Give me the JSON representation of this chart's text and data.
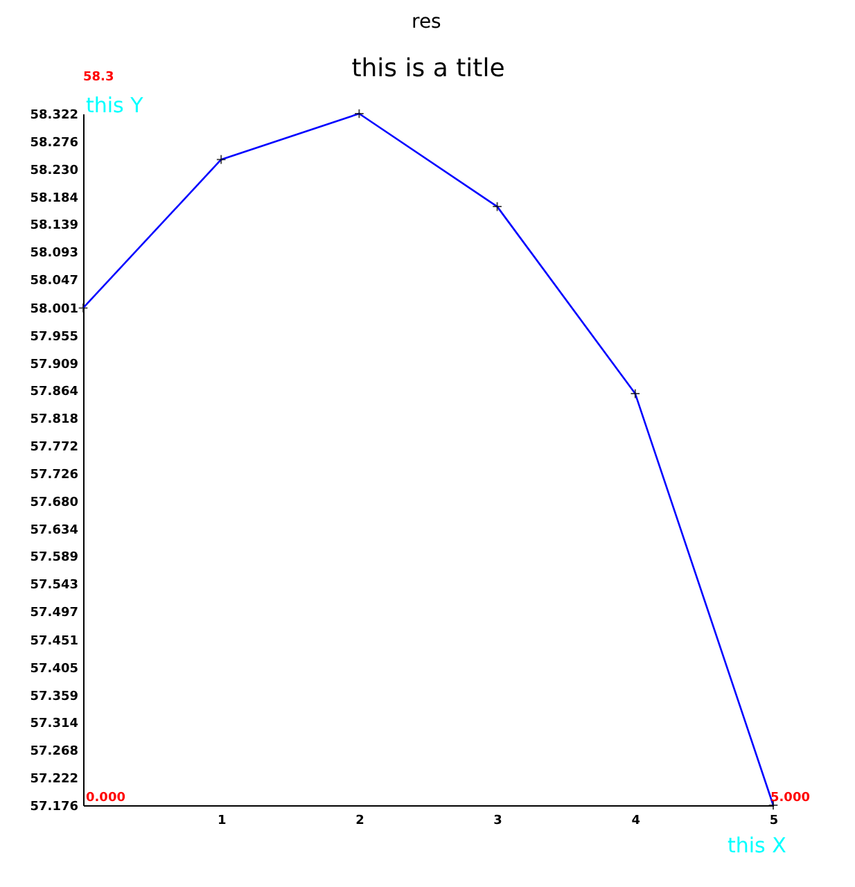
{
  "chart_data": {
    "type": "line",
    "title": "this is a title",
    "xlabel": "this X",
    "ylabel": "this Y",
    "x": [
      0,
      1,
      2,
      3,
      4,
      5
    ],
    "series": [
      {
        "color": "#0000ff",
        "values": [
          58.0,
          58.246,
          58.322,
          58.168,
          57.858,
          57.176
        ]
      }
    ],
    "xlim": [
      0,
      5
    ],
    "xticks": [
      1,
      2,
      3,
      4,
      5
    ],
    "ylim": [
      57.176,
      58.322
    ],
    "yticks": [
      57.176,
      57.222,
      57.268,
      57.314,
      57.359,
      57.405,
      57.451,
      57.497,
      57.543,
      57.589,
      57.634,
      {
        "value": 57.68,
        "label": "57.680"
      },
      57.726,
      57.772,
      57.818,
      57.864,
      57.909,
      57.955,
      58.001,
      58.047,
      58.093,
      58.139,
      58.184,
      {
        "value": 58.23,
        "label": "58.230"
      },
      58.276,
      58.322
    ],
    "annotations": [
      "res",
      "58.3",
      "0.000",
      "5.000"
    ],
    "marker": "cross",
    "line_style": "solid",
    "grid": false
  }
}
